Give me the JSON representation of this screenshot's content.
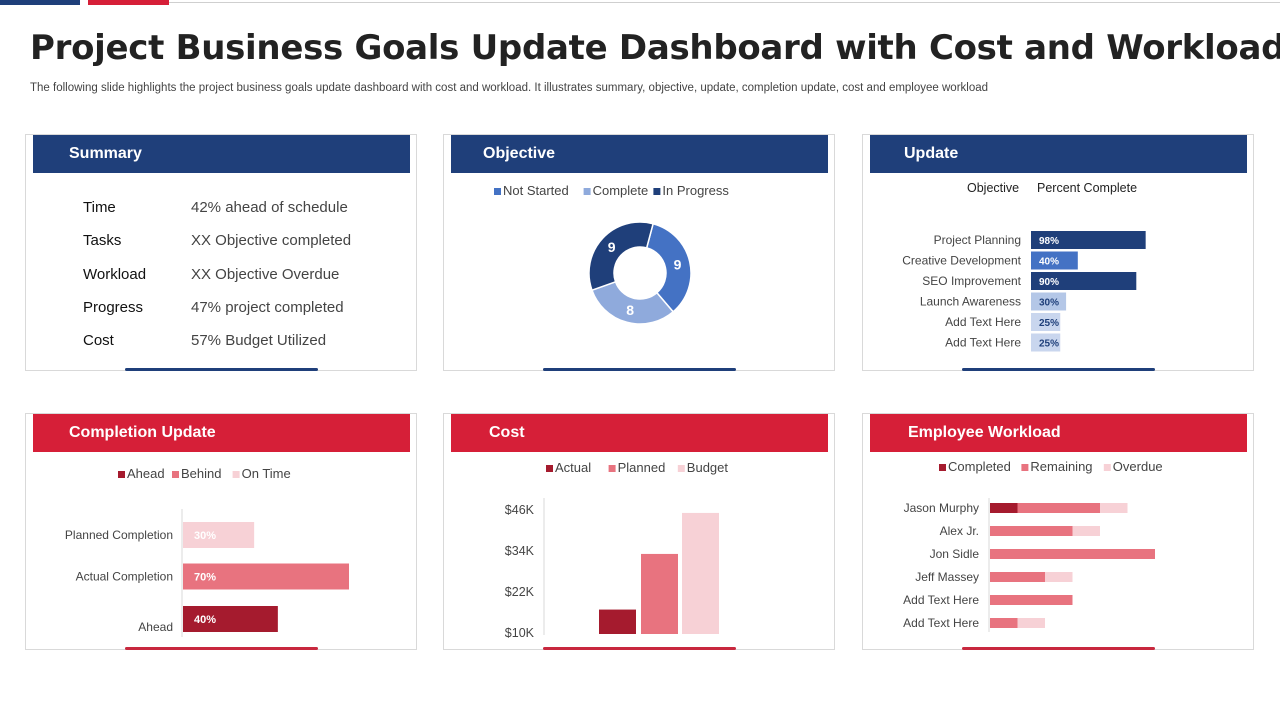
{
  "page": {
    "title": "Project Business Goals Update Dashboard with Cost and Workload",
    "subtitle": "The following slide highlights the project business goals update dashboard with cost and workload. It illustrates summary, objective, update, completion update, cost and employee workload"
  },
  "summary": {
    "header": "Summary",
    "rows": [
      {
        "label": "Time",
        "value": "42% ahead of schedule"
      },
      {
        "label": "Tasks",
        "value": "XX Objective completed"
      },
      {
        "label": "Workload",
        "value": "XX Objective Overdue"
      },
      {
        "label": "Progress",
        "value": "47% project completed"
      },
      {
        "label": "Cost",
        "value": "57% Budget Utilized"
      }
    ]
  },
  "objective": {
    "header": "Objective"
  },
  "update": {
    "header": "Update",
    "col_objective": "Objective",
    "col_percent": "Percent Complete"
  },
  "completion": {
    "header": "Completion Update"
  },
  "cost": {
    "header": "Cost"
  },
  "workload": {
    "header": "Employee Workload"
  },
  "chart_data": [
    {
      "id": "objective",
      "type": "pie",
      "donut": true,
      "labels": [
        "Not Started",
        "Complete",
        "In Progress"
      ],
      "values": [
        9,
        8,
        9
      ],
      "colors": [
        "#4472c4",
        "#8faadc",
        "#1f3f7a"
      ]
    },
    {
      "id": "update",
      "type": "bar",
      "orientation": "horizontal",
      "categories": [
        "Project Planning",
        "Creative Development",
        "SEO Improvement",
        "Launch Awareness",
        "Add Text Here",
        "Add Text Here"
      ],
      "values": [
        98,
        40,
        90,
        30,
        25,
        25
      ],
      "value_labels": [
        "98%",
        "40%",
        "90%",
        "30%",
        "25%",
        "25%"
      ],
      "colors": [
        "#1f3f7a",
        "#4472c4",
        "#1f3f7a",
        "#b4c7e7",
        "#c9d6ee",
        "#c9d6ee"
      ],
      "xlim": [
        0,
        100
      ]
    },
    {
      "id": "completion",
      "type": "bar",
      "orientation": "horizontal",
      "legend": [
        "Ahead",
        "Behind",
        "On Time"
      ],
      "legend_colors": [
        "#a51b2e",
        "#e8737f",
        "#f7d1d6"
      ],
      "categories": [
        "Planned Completion",
        "Actual Completion",
        "Ahead"
      ],
      "values": [
        30,
        70,
        40
      ],
      "value_labels": [
        "30%",
        "70%",
        "40%"
      ],
      "colors": [
        "#f7d1d6",
        "#e8737f",
        "#a51b2e"
      ],
      "xlim": [
        0,
        70
      ]
    },
    {
      "id": "cost",
      "type": "bar",
      "series": [
        {
          "name": "Actual",
          "values": [
            18
          ],
          "color": "#a51b2e"
        },
        {
          "name": "Planned",
          "values": [
            37
          ],
          "color": "#e8737f"
        },
        {
          "name": "Budget",
          "values": [
            51
          ],
          "color": "#f7d1d6"
        }
      ],
      "yticks": [
        "$46K",
        "$34K",
        "$22K",
        "$10K"
      ],
      "ylim": [
        10,
        52
      ]
    },
    {
      "id": "workload",
      "type": "bar",
      "orientation": "horizontal",
      "stacked": true,
      "categories": [
        "Jason Murphy",
        "Alex Jr.",
        "Jon Sidle",
        "Jeff Massey",
        "Add Text Here",
        "Add Text Here"
      ],
      "series": [
        {
          "name": "Completed",
          "values": [
            10,
            0,
            0,
            0,
            0,
            0
          ],
          "color": "#a51b2e"
        },
        {
          "name": "Remaining",
          "values": [
            30,
            30,
            60,
            20,
            30,
            10
          ],
          "color": "#e8737f"
        },
        {
          "name": "Overdue",
          "values": [
            10,
            10,
            0,
            10,
            0,
            10
          ],
          "color": "#f7d1d6"
        }
      ],
      "xlim": [
        0,
        60
      ]
    }
  ]
}
